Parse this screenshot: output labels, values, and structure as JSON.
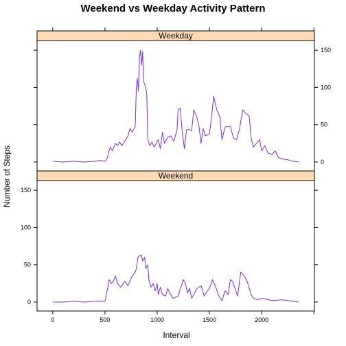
{
  "title": "Weekend vs Weekday Activity Pattern",
  "xlabel": "Interval",
  "ylabel": "Number of Steps",
  "series_color": "#7b2ee6",
  "strip_color": "#ffdab5",
  "chart_data": {
    "type": "line",
    "title": "Weekend vs Weekday Activity Pattern",
    "xlabel": "Interval",
    "ylabel": "Number of Steps",
    "xlim": [
      -150,
      2505
    ],
    "ylim": [
      -12,
      163
    ],
    "x_ticks": [
      0,
      500,
      1000,
      1500,
      2000
    ],
    "y_ticks": [
      0,
      50,
      100,
      150
    ],
    "grid": false,
    "panels": [
      {
        "name": "Weekday",
        "points": [
          [
            0,
            1
          ],
          [
            100,
            0
          ],
          [
            200,
            1
          ],
          [
            300,
            0
          ],
          [
            400,
            1
          ],
          [
            450,
            2
          ],
          [
            500,
            1
          ],
          [
            520,
            5
          ],
          [
            550,
            20
          ],
          [
            570,
            15
          ],
          [
            600,
            25
          ],
          [
            620,
            22
          ],
          [
            640,
            27
          ],
          [
            660,
            22
          ],
          [
            700,
            30
          ],
          [
            720,
            35
          ],
          [
            740,
            45
          ],
          [
            760,
            40
          ],
          [
            790,
            48
          ],
          [
            800,
            100
          ],
          [
            810,
            112
          ],
          [
            820,
            95
          ],
          [
            830,
            140
          ],
          [
            840,
            150
          ],
          [
            850,
            130
          ],
          [
            860,
            148
          ],
          [
            870,
            108
          ],
          [
            890,
            100
          ],
          [
            900,
            90
          ],
          [
            910,
            30
          ],
          [
            930,
            22
          ],
          [
            950,
            27
          ],
          [
            970,
            20
          ],
          [
            990,
            25
          ],
          [
            1010,
            30
          ],
          [
            1030,
            18
          ],
          [
            1050,
            40
          ],
          [
            1070,
            25
          ],
          [
            1100,
            33
          ],
          [
            1130,
            35
          ],
          [
            1160,
            28
          ],
          [
            1190,
            43
          ],
          [
            1200,
            70
          ],
          [
            1220,
            72
          ],
          [
            1240,
            40
          ],
          [
            1260,
            18
          ],
          [
            1280,
            43
          ],
          [
            1300,
            44
          ],
          [
            1330,
            42
          ],
          [
            1350,
            70
          ],
          [
            1380,
            60
          ],
          [
            1400,
            48
          ],
          [
            1420,
            25
          ],
          [
            1440,
            45
          ],
          [
            1460,
            35
          ],
          [
            1500,
            38
          ],
          [
            1520,
            60
          ],
          [
            1540,
            88
          ],
          [
            1570,
            70
          ],
          [
            1600,
            60
          ],
          [
            1620,
            30
          ],
          [
            1650,
            47
          ],
          [
            1700,
            48
          ],
          [
            1730,
            32
          ],
          [
            1760,
            30
          ],
          [
            1790,
            45
          ],
          [
            1800,
            55
          ],
          [
            1820,
            70
          ],
          [
            1850,
            65
          ],
          [
            1880,
            62
          ],
          [
            1900,
            32
          ],
          [
            1920,
            20
          ],
          [
            1950,
            25
          ],
          [
            1980,
            30
          ],
          [
            2000,
            15
          ],
          [
            2030,
            22
          ],
          [
            2060,
            12
          ],
          [
            2100,
            10
          ],
          [
            2130,
            15
          ],
          [
            2160,
            6
          ],
          [
            2200,
            4
          ],
          [
            2250,
            3
          ],
          [
            2300,
            1
          ],
          [
            2355,
            0
          ]
        ]
      },
      {
        "name": "Weekend",
        "points": [
          [
            0,
            0
          ],
          [
            100,
            0
          ],
          [
            200,
            1
          ],
          [
            300,
            0
          ],
          [
            400,
            1
          ],
          [
            500,
            1
          ],
          [
            520,
            15
          ],
          [
            540,
            30
          ],
          [
            560,
            25
          ],
          [
            580,
            28
          ],
          [
            600,
            35
          ],
          [
            620,
            25
          ],
          [
            650,
            20
          ],
          [
            690,
            28
          ],
          [
            720,
            22
          ],
          [
            760,
            35
          ],
          [
            790,
            40
          ],
          [
            800,
            45
          ],
          [
            815,
            60
          ],
          [
            830,
            62
          ],
          [
            850,
            63
          ],
          [
            860,
            55
          ],
          [
            880,
            60
          ],
          [
            890,
            45
          ],
          [
            910,
            50
          ],
          [
            920,
            30
          ],
          [
            940,
            20
          ],
          [
            960,
            25
          ],
          [
            980,
            15
          ],
          [
            1000,
            25
          ],
          [
            1010,
            10
          ],
          [
            1030,
            20
          ],
          [
            1050,
            10
          ],
          [
            1080,
            8
          ],
          [
            1100,
            18
          ],
          [
            1120,
            12
          ],
          [
            1150,
            5
          ],
          [
            1200,
            8
          ],
          [
            1250,
            30
          ],
          [
            1270,
            25
          ],
          [
            1290,
            12
          ],
          [
            1310,
            18
          ],
          [
            1330,
            5
          ],
          [
            1350,
            10
          ],
          [
            1380,
            18
          ],
          [
            1420,
            22
          ],
          [
            1450,
            8
          ],
          [
            1480,
            15
          ],
          [
            1500,
            18
          ],
          [
            1530,
            30
          ],
          [
            1560,
            20
          ],
          [
            1590,
            8
          ],
          [
            1620,
            2
          ],
          [
            1650,
            15
          ],
          [
            1680,
            10
          ],
          [
            1700,
            30
          ],
          [
            1720,
            28
          ],
          [
            1740,
            20
          ],
          [
            1770,
            8
          ],
          [
            1800,
            40
          ],
          [
            1830,
            36
          ],
          [
            1860,
            28
          ],
          [
            1900,
            10
          ],
          [
            1920,
            5
          ],
          [
            1960,
            3
          ],
          [
            2000,
            5
          ],
          [
            2100,
            2
          ],
          [
            2200,
            3
          ],
          [
            2300,
            1
          ],
          [
            2355,
            0
          ]
        ]
      }
    ]
  }
}
